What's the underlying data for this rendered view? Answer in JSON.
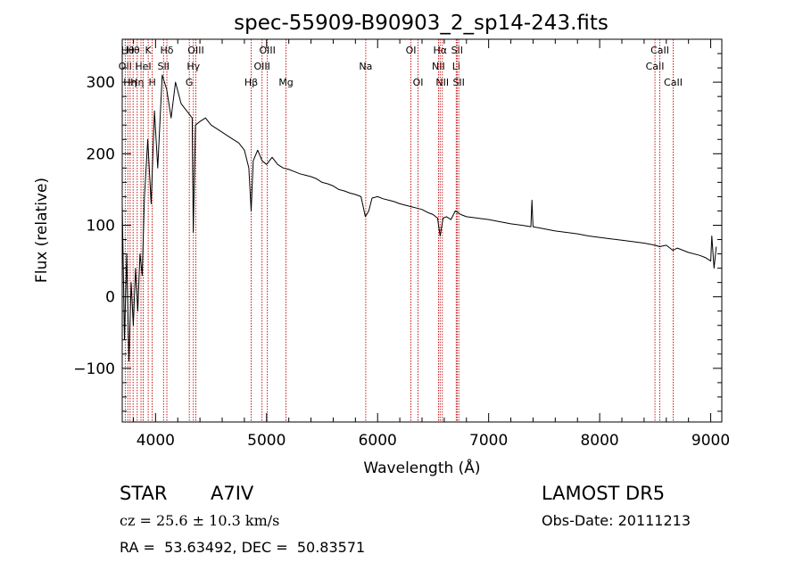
{
  "chart_data": {
    "type": "line",
    "title": "spec-55909-B90903_2_sp14-243.fits",
    "xlabel": "Wavelength (Å)",
    "ylabel": "Flux (relative)",
    "xlim": [
      3700,
      9100
    ],
    "ylim": [
      -175,
      360
    ],
    "xticks": [
      4000,
      5000,
      6000,
      7000,
      8000,
      9000
    ],
    "yticks": [
      -100,
      0,
      100,
      200,
      300
    ],
    "xtick_labels": [
      "4000",
      "5000",
      "6000",
      "7000",
      "8000",
      "9000"
    ],
    "ytick_labels": [
      "−100",
      "0",
      "100",
      "200",
      "300"
    ],
    "grid": false,
    "series": [
      {
        "x": [
          3700,
          3720,
          3740,
          3760,
          3780,
          3800,
          3820,
          3840,
          3860,
          3880,
          3900,
          3930,
          3960,
          3990,
          4020,
          4060,
          4100,
          4140,
          4180,
          4230,
          4280,
          4330,
          4340,
          4360,
          4400,
          4450,
          4500,
          4550,
          4600,
          4650,
          4700,
          4750,
          4800,
          4840,
          4861,
          4880,
          4920,
          4960,
          5000,
          5050,
          5100,
          5150,
          5200,
          5250,
          5300,
          5350,
          5400,
          5450,
          5500,
          5550,
          5600,
          5650,
          5700,
          5750,
          5800,
          5850,
          5890,
          5920,
          5950,
          6000,
          6050,
          6100,
          6150,
          6200,
          6250,
          6300,
          6350,
          6400,
          6450,
          6500,
          6540,
          6563,
          6590,
          6620,
          6660,
          6700,
          6750,
          6800,
          6900,
          7000,
          7100,
          7200,
          7300,
          7380,
          7390,
          7400,
          7500,
          7600,
          7700,
          7800,
          7900,
          8000,
          8100,
          8200,
          8300,
          8400,
          8500,
          8540,
          8600,
          8660,
          8700,
          8800,
          8900,
          8950,
          9000,
          9010,
          9030,
          9050
        ],
        "y": [
          130,
          -60,
          60,
          -90,
          20,
          -40,
          40,
          -20,
          60,
          30,
          140,
          220,
          130,
          260,
          180,
          310,
          290,
          250,
          300,
          270,
          260,
          250,
          90,
          240,
          245,
          250,
          240,
          235,
          230,
          225,
          220,
          215,
          205,
          180,
          120,
          190,
          205,
          190,
          185,
          195,
          185,
          180,
          178,
          175,
          172,
          170,
          168,
          165,
          160,
          158,
          155,
          150,
          148,
          145,
          143,
          140,
          112,
          120,
          138,
          140,
          137,
          135,
          133,
          130,
          128,
          126,
          124,
          122,
          118,
          115,
          110,
          85,
          110,
          112,
          108,
          120,
          115,
          112,
          110,
          108,
          105,
          102,
          100,
          98,
          135,
          98,
          95,
          92,
          90,
          88,
          85,
          83,
          81,
          79,
          77,
          75,
          72,
          70,
          72,
          65,
          68,
          62,
          58,
          55,
          50,
          85,
          40,
          70
        ]
      }
    ],
    "lines": [
      {
        "x": 3727,
        "label": "OII",
        "row": 1
      },
      {
        "x": 3750,
        "label": "Hθ",
        "row": 0
      },
      {
        "x": 3771,
        "label": "Hη",
        "row": 2
      },
      {
        "x": 3798,
        "label": "Hθ",
        "row": 0
      },
      {
        "x": 3835,
        "label": "Hη",
        "row": 2
      },
      {
        "x": 3869,
        "label": "",
        "row": 2
      },
      {
        "x": 3889,
        "label": "HeI",
        "row": 1
      },
      {
        "x": 3934,
        "label": "K",
        "row": 0
      },
      {
        "x": 3970,
        "label": "H",
        "row": 2
      },
      {
        "x": 4072,
        "label": "SII",
        "row": 1
      },
      {
        "x": 4102,
        "label": "Hδ",
        "row": 0
      },
      {
        "x": 4304,
        "label": "G",
        "row": 2
      },
      {
        "x": 4341,
        "label": "Hγ",
        "row": 1
      },
      {
        "x": 4363,
        "label": "OIII",
        "row": 0
      },
      {
        "x": 4861,
        "label": "Hβ",
        "row": 2
      },
      {
        "x": 4959,
        "label": "OIII",
        "row": 1
      },
      {
        "x": 5007,
        "label": "OIII",
        "row": 0
      },
      {
        "x": 5175,
        "label": "Mg",
        "row": 2
      },
      {
        "x": 5893,
        "label": "Na",
        "row": 1
      },
      {
        "x": 6300,
        "label": "OI",
        "row": 0
      },
      {
        "x": 6364,
        "label": "OI",
        "row": 2
      },
      {
        "x": 6548,
        "label": "NII",
        "row": 1
      },
      {
        "x": 6563,
        "label": "Hα",
        "row": 0
      },
      {
        "x": 6583,
        "label": "NII",
        "row": 2
      },
      {
        "x": 6708,
        "label": "Li",
        "row": 1
      },
      {
        "x": 6716,
        "label": "SII",
        "row": 0
      },
      {
        "x": 6731,
        "label": "SII",
        "row": 2
      },
      {
        "x": 8498,
        "label": "CaII",
        "row": 1
      },
      {
        "x": 8542,
        "label": "CaII",
        "row": 0
      },
      {
        "x": 8662,
        "label": "CaII",
        "row": 2
      }
    ]
  },
  "info": {
    "class_label": "STAR",
    "subclass": "A7IV",
    "survey": "LAMOST DR5",
    "cz": "cz = 25.6 ± 10.3 km/s",
    "obs_date": "Obs-Date: 20111213",
    "coords": "RA =  53.63492, DEC =  50.83571"
  }
}
